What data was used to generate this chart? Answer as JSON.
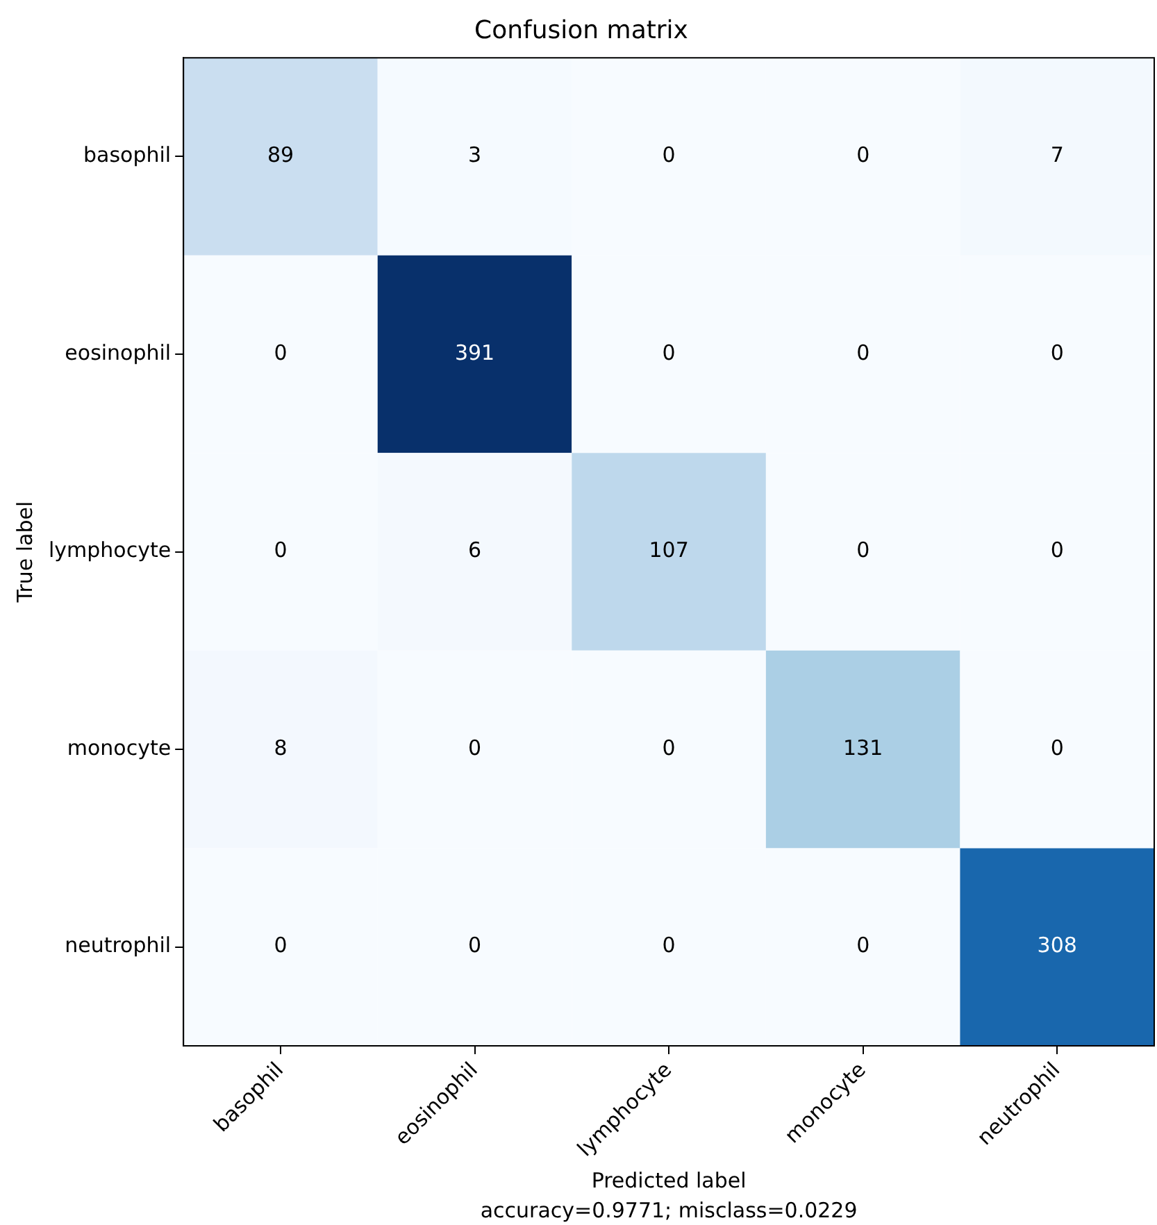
{
  "chart_data": {
    "type": "heatmap",
    "title": "Confusion matrix",
    "xlabel": "Predicted label",
    "ylabel": "True label",
    "categories": [
      "basophil",
      "eosinophil",
      "lymphocyte",
      "monocyte",
      "neutrophil"
    ],
    "y_categories": [
      "basophil",
      "eosinophil",
      "lymphocyte",
      "monocyte",
      "neutrophil"
    ],
    "cells": [
      [
        89,
        3,
        0,
        0,
        7
      ],
      [
        0,
        391,
        0,
        0,
        0
      ],
      [
        0,
        6,
        107,
        0,
        0
      ],
      [
        8,
        0,
        0,
        131,
        0
      ],
      [
        0,
        0,
        0,
        0,
        308
      ]
    ],
    "data_labels": true,
    "annotations": [
      "accuracy=0.9771; misclass=0.0229"
    ]
  }
}
